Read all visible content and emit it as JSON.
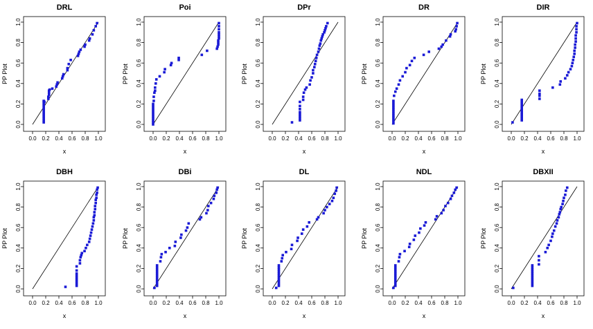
{
  "figure": {
    "description_label": "PP plots"
  },
  "chart_data": [
    {
      "type": "scatter",
      "title": "DRL",
      "xlabel": "x",
      "ylabel": "PP Plot",
      "xlim": [
        0,
        1
      ],
      "ylim": [
        0,
        1
      ],
      "ticks": [
        "0.0",
        "0.2",
        "0.4",
        "0.6",
        "0.8",
        "1.0"
      ],
      "reference_line": true,
      "points": {
        "x": [
          0.17,
          0.17,
          0.17,
          0.17,
          0.17,
          0.17,
          0.17,
          0.17,
          0.17,
          0.17,
          0.17,
          0.17,
          0.18,
          0.24,
          0.24,
          0.25,
          0.25,
          0.25,
          0.26,
          0.3,
          0.36,
          0.37,
          0.38,
          0.45,
          0.46,
          0.47,
          0.53,
          0.53,
          0.55,
          0.58,
          0.69,
          0.7,
          0.71,
          0.73,
          0.79,
          0.8,
          0.86,
          0.87,
          0.91,
          0.93,
          0.96,
          0.98
        ],
        "y": [
          0.02,
          0.04,
          0.06,
          0.08,
          0.1,
          0.12,
          0.14,
          0.16,
          0.18,
          0.2,
          0.22,
          0.23,
          0.22,
          0.25,
          0.27,
          0.29,
          0.31,
          0.33,
          0.34,
          0.35,
          0.37,
          0.39,
          0.41,
          0.45,
          0.47,
          0.49,
          0.53,
          0.55,
          0.59,
          0.63,
          0.67,
          0.69,
          0.71,
          0.73,
          0.76,
          0.78,
          0.82,
          0.84,
          0.88,
          0.92,
          0.96,
          0.99
        ]
      }
    },
    {
      "type": "scatter",
      "title": "Poi",
      "xlabel": "x",
      "ylabel": "PP Plot",
      "xlim": [
        0,
        1
      ],
      "ylim": [
        0,
        1
      ],
      "ticks": [
        "0.0",
        "0.2",
        "0.4",
        "0.6",
        "0.8",
        "1.0"
      ],
      "reference_line": true,
      "points": {
        "x": [
          0.0,
          0.0,
          0.0,
          0.0,
          0.0,
          0.0,
          0.0,
          0.0,
          0.0,
          0.0,
          0.0,
          0.01,
          0.01,
          0.02,
          0.03,
          0.03,
          0.04,
          0.05,
          0.1,
          0.17,
          0.18,
          0.27,
          0.28,
          0.39,
          0.39,
          0.74,
          0.82,
          0.97,
          0.98,
          0.99,
          0.99,
          0.99,
          1.0,
          1.0,
          1.0,
          1.0,
          1.0,
          1.0,
          1.0
        ],
        "y": [
          0.0,
          0.02,
          0.04,
          0.06,
          0.08,
          0.1,
          0.12,
          0.14,
          0.16,
          0.18,
          0.2,
          0.23,
          0.27,
          0.31,
          0.33,
          0.36,
          0.4,
          0.44,
          0.47,
          0.51,
          0.54,
          0.58,
          0.6,
          0.63,
          0.65,
          0.68,
          0.72,
          0.74,
          0.76,
          0.78,
          0.8,
          0.82,
          0.84,
          0.86,
          0.88,
          0.9,
          0.93,
          0.96,
          0.99
        ]
      }
    },
    {
      "type": "scatter",
      "title": "DPr",
      "xlabel": "x",
      "ylabel": "PP Plot",
      "xlim": [
        0,
        1
      ],
      "ylim": [
        0,
        1
      ],
      "ticks": [
        "0.0",
        "0.2",
        "0.4",
        "0.6",
        "0.8",
        "1.0"
      ],
      "reference_line": true,
      "points": {
        "x": [
          0.3,
          0.42,
          0.42,
          0.42,
          0.42,
          0.42,
          0.42,
          0.42,
          0.42,
          0.47,
          0.47,
          0.48,
          0.5,
          0.52,
          0.57,
          0.58,
          0.6,
          0.62,
          0.62,
          0.64,
          0.65,
          0.66,
          0.67,
          0.68,
          0.7,
          0.71,
          0.72,
          0.73,
          0.74,
          0.75,
          0.76,
          0.77,
          0.79,
          0.8,
          0.81,
          0.82,
          0.84
        ],
        "y": [
          0.02,
          0.04,
          0.06,
          0.08,
          0.1,
          0.12,
          0.15,
          0.18,
          0.22,
          0.24,
          0.27,
          0.31,
          0.34,
          0.36,
          0.39,
          0.43,
          0.46,
          0.5,
          0.53,
          0.56,
          0.59,
          0.62,
          0.65,
          0.68,
          0.71,
          0.74,
          0.77,
          0.79,
          0.82,
          0.84,
          0.86,
          0.88,
          0.9,
          0.92,
          0.94,
          0.96,
          0.99
        ]
      }
    },
    {
      "type": "scatter",
      "title": "DR",
      "xlabel": "x",
      "ylabel": "PP Plot",
      "xlim": [
        0,
        1
      ],
      "ylim": [
        0,
        1
      ],
      "ticks": [
        "0.0",
        "0.2",
        "0.4",
        "0.6",
        "0.8",
        "1.0"
      ],
      "reference_line": true,
      "points": {
        "x": [
          0.02,
          0.02,
          0.02,
          0.02,
          0.02,
          0.02,
          0.02,
          0.02,
          0.02,
          0.02,
          0.02,
          0.02,
          0.03,
          0.05,
          0.07,
          0.1,
          0.12,
          0.16,
          0.2,
          0.22,
          0.27,
          0.3,
          0.34,
          0.48,
          0.56,
          0.71,
          0.75,
          0.77,
          0.82,
          0.88,
          0.89,
          0.96,
          0.97,
          0.98,
          0.99
        ],
        "y": [
          0.01,
          0.03,
          0.05,
          0.07,
          0.09,
          0.11,
          0.13,
          0.15,
          0.17,
          0.19,
          0.21,
          0.23,
          0.28,
          0.32,
          0.35,
          0.39,
          0.43,
          0.47,
          0.51,
          0.55,
          0.58,
          0.62,
          0.65,
          0.68,
          0.71,
          0.74,
          0.76,
          0.78,
          0.82,
          0.86,
          0.88,
          0.91,
          0.93,
          0.96,
          0.99
        ]
      }
    },
    {
      "type": "scatter",
      "title": "DIR",
      "xlabel": "x",
      "ylabel": "PP Plot",
      "xlim": [
        0,
        1
      ],
      "ylim": [
        0,
        1
      ],
      "ticks": [
        "0.0",
        "0.2",
        "0.4",
        "0.6",
        "0.8",
        "1.0"
      ],
      "reference_line": true,
      "points": {
        "x": [
          0.02,
          0.16,
          0.16,
          0.16,
          0.16,
          0.16,
          0.16,
          0.16,
          0.16,
          0.16,
          0.16,
          0.16,
          0.43,
          0.43,
          0.43,
          0.43,
          0.63,
          0.74,
          0.75,
          0.82,
          0.85,
          0.87,
          0.9,
          0.92,
          0.93,
          0.94,
          0.95,
          0.96,
          0.96,
          0.97,
          0.97,
          0.98,
          0.98,
          0.98,
          0.99,
          0.99,
          0.99,
          1.0
        ],
        "y": [
          0.02,
          0.04,
          0.06,
          0.08,
          0.1,
          0.12,
          0.14,
          0.16,
          0.18,
          0.2,
          0.22,
          0.24,
          0.25,
          0.28,
          0.3,
          0.33,
          0.36,
          0.39,
          0.42,
          0.45,
          0.48,
          0.51,
          0.54,
          0.57,
          0.6,
          0.63,
          0.66,
          0.69,
          0.72,
          0.75,
          0.78,
          0.81,
          0.84,
          0.87,
          0.9,
          0.93,
          0.96,
          0.99
        ]
      }
    },
    {
      "type": "scatter",
      "title": "DBH",
      "xlabel": "x",
      "ylabel": "PP Plot",
      "xlim": [
        0,
        1
      ],
      "ylim": [
        0,
        1
      ],
      "ticks": [
        "0.0",
        "0.2",
        "0.4",
        "0.6",
        "0.8",
        "1.0"
      ],
      "reference_line": true,
      "points": {
        "x": [
          0.5,
          0.67,
          0.67,
          0.67,
          0.67,
          0.67,
          0.67,
          0.67,
          0.67,
          0.67,
          0.72,
          0.72,
          0.73,
          0.74,
          0.75,
          0.79,
          0.81,
          0.83,
          0.86,
          0.87,
          0.88,
          0.89,
          0.9,
          0.91,
          0.92,
          0.93,
          0.93,
          0.94,
          0.94,
          0.95,
          0.95,
          0.96,
          0.96,
          0.97,
          0.97,
          0.98,
          0.98,
          0.99
        ],
        "y": [
          0.02,
          0.03,
          0.05,
          0.07,
          0.09,
          0.11,
          0.13,
          0.15,
          0.18,
          0.22,
          0.25,
          0.28,
          0.31,
          0.33,
          0.35,
          0.37,
          0.4,
          0.43,
          0.46,
          0.49,
          0.52,
          0.55,
          0.58,
          0.61,
          0.64,
          0.67,
          0.7,
          0.72,
          0.75,
          0.78,
          0.81,
          0.84,
          0.87,
          0.89,
          0.92,
          0.94,
          0.97,
          0.99
        ]
      }
    },
    {
      "type": "scatter",
      "title": "DBi",
      "xlabel": "x",
      "ylabel": "PP Plot",
      "xlim": [
        0,
        1
      ],
      "ylim": [
        0,
        1
      ],
      "ticks": [
        "0.0",
        "0.2",
        "0.4",
        "0.6",
        "0.8",
        "1.0"
      ],
      "reference_line": true,
      "points": {
        "x": [
          0.02,
          0.06,
          0.06,
          0.06,
          0.06,
          0.06,
          0.06,
          0.06,
          0.06,
          0.06,
          0.06,
          0.06,
          0.11,
          0.12,
          0.13,
          0.19,
          0.25,
          0.33,
          0.34,
          0.42,
          0.43,
          0.5,
          0.52,
          0.54,
          0.71,
          0.73,
          0.81,
          0.83,
          0.84,
          0.88,
          0.92,
          0.93,
          0.96,
          0.97,
          0.98
        ],
        "y": [
          0.01,
          0.03,
          0.05,
          0.07,
          0.09,
          0.11,
          0.13,
          0.15,
          0.17,
          0.19,
          0.21,
          0.23,
          0.27,
          0.31,
          0.34,
          0.36,
          0.4,
          0.42,
          0.46,
          0.5,
          0.53,
          0.57,
          0.6,
          0.64,
          0.68,
          0.7,
          0.74,
          0.77,
          0.81,
          0.84,
          0.88,
          0.91,
          0.94,
          0.97,
          0.99
        ]
      }
    },
    {
      "type": "scatter",
      "title": "DL",
      "xlabel": "x",
      "ylabel": "PP Plot",
      "xlim": [
        0,
        1
      ],
      "ylim": [
        0,
        1
      ],
      "ticks": [
        "0.0",
        "0.2",
        "0.4",
        "0.6",
        "0.8",
        "1.0"
      ],
      "reference_line": true,
      "points": {
        "x": [
          0.06,
          0.1,
          0.1,
          0.1,
          0.1,
          0.1,
          0.1,
          0.1,
          0.1,
          0.1,
          0.1,
          0.1,
          0.14,
          0.15,
          0.16,
          0.21,
          0.29,
          0.3,
          0.38,
          0.39,
          0.45,
          0.47,
          0.53,
          0.56,
          0.68,
          0.7,
          0.78,
          0.8,
          0.83,
          0.87,
          0.91,
          0.93,
          0.95,
          0.97,
          0.98
        ],
        "y": [
          0.01,
          0.03,
          0.05,
          0.07,
          0.09,
          0.11,
          0.13,
          0.15,
          0.17,
          0.19,
          0.21,
          0.23,
          0.27,
          0.3,
          0.33,
          0.36,
          0.39,
          0.43,
          0.47,
          0.5,
          0.54,
          0.58,
          0.61,
          0.65,
          0.68,
          0.7,
          0.74,
          0.77,
          0.8,
          0.83,
          0.86,
          0.89,
          0.93,
          0.96,
          0.99
        ]
      }
    },
    {
      "type": "scatter",
      "title": "NDL",
      "xlabel": "x",
      "ylabel": "PP Plot",
      "xlim": [
        0,
        1
      ],
      "ylim": [
        0,
        1
      ],
      "ticks": [
        "0.0",
        "0.2",
        "0.4",
        "0.6",
        "0.8",
        "1.0"
      ],
      "reference_line": true,
      "points": {
        "x": [
          0.02,
          0.05,
          0.05,
          0.05,
          0.05,
          0.05,
          0.05,
          0.05,
          0.05,
          0.05,
          0.05,
          0.05,
          0.1,
          0.11,
          0.12,
          0.19,
          0.26,
          0.27,
          0.33,
          0.35,
          0.41,
          0.43,
          0.49,
          0.51,
          0.66,
          0.68,
          0.75,
          0.78,
          0.81,
          0.85,
          0.89,
          0.91,
          0.94,
          0.96,
          0.98
        ],
        "y": [
          0.01,
          0.03,
          0.05,
          0.07,
          0.09,
          0.11,
          0.13,
          0.15,
          0.17,
          0.19,
          0.21,
          0.23,
          0.27,
          0.31,
          0.34,
          0.37,
          0.41,
          0.44,
          0.48,
          0.52,
          0.55,
          0.59,
          0.62,
          0.65,
          0.68,
          0.71,
          0.74,
          0.77,
          0.81,
          0.84,
          0.88,
          0.91,
          0.94,
          0.97,
          0.99
        ]
      }
    },
    {
      "type": "scatter",
      "title": "DBXII",
      "xlabel": "x",
      "ylabel": "PP Plot",
      "xlim": [
        0,
        1
      ],
      "ylim": [
        0,
        1
      ],
      "ticks": [
        "0.0",
        "0.2",
        "0.4",
        "0.6",
        "0.8",
        "1.0"
      ],
      "reference_line": true,
      "points": {
        "x": [
          0.03,
          0.32,
          0.32,
          0.32,
          0.32,
          0.32,
          0.32,
          0.32,
          0.32,
          0.32,
          0.32,
          0.32,
          0.42,
          0.42,
          0.42,
          0.52,
          0.55,
          0.57,
          0.6,
          0.62,
          0.63,
          0.65,
          0.67,
          0.69,
          0.7,
          0.72,
          0.73,
          0.74,
          0.75,
          0.76,
          0.78,
          0.79,
          0.8,
          0.82,
          0.83,
          0.85
        ],
        "y": [
          0.01,
          0.03,
          0.05,
          0.07,
          0.09,
          0.11,
          0.13,
          0.15,
          0.17,
          0.19,
          0.21,
          0.23,
          0.24,
          0.28,
          0.32,
          0.36,
          0.4,
          0.43,
          0.47,
          0.51,
          0.54,
          0.57,
          0.61,
          0.64,
          0.67,
          0.7,
          0.73,
          0.75,
          0.78,
          0.8,
          0.83,
          0.86,
          0.89,
          0.92,
          0.96,
          0.99
        ]
      }
    }
  ]
}
